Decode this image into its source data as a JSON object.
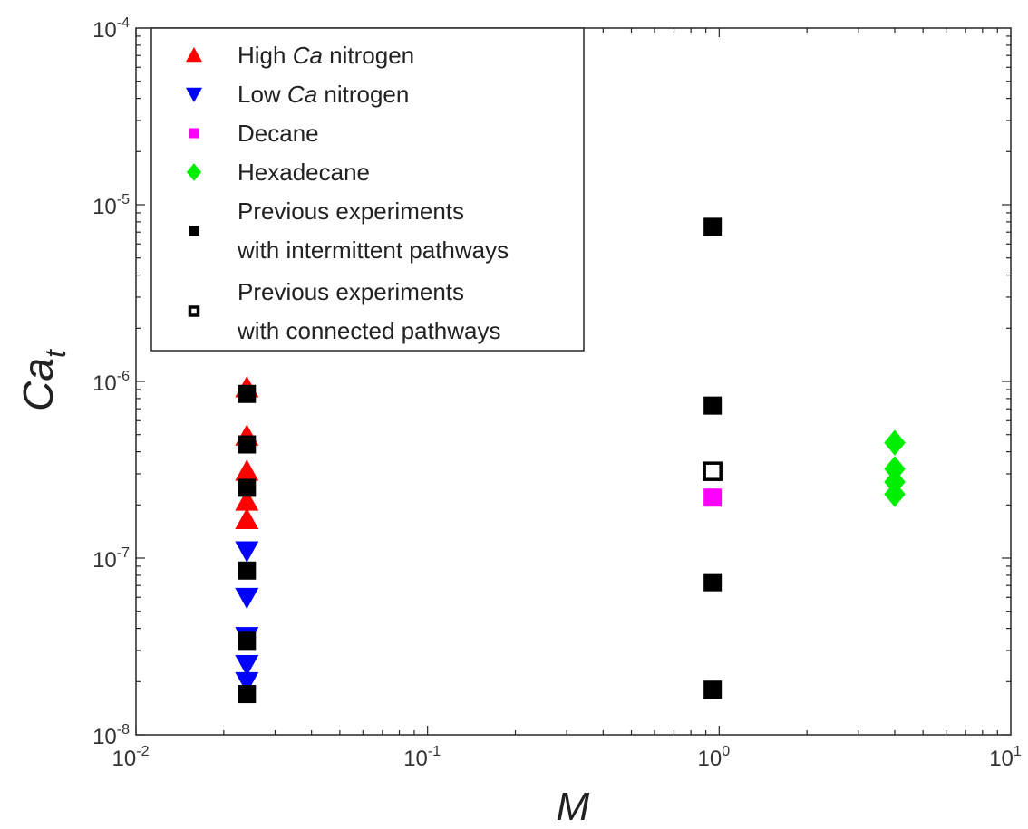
{
  "chart_data": {
    "type": "scatter",
    "x_scale": "log",
    "y_scale": "log",
    "xlim": [
      0.01,
      10
    ],
    "ylim": [
      1e-08,
      0.0001
    ],
    "grid": false,
    "legend_position": "top-left",
    "xlabel": "M",
    "ylabel": "Ca",
    "ylabel_subscript": "t",
    "x_ticks": [
      {
        "base": "10",
        "exp": "-2",
        "value": 0.01
      },
      {
        "base": "10",
        "exp": "-1",
        "value": 0.1
      },
      {
        "base": "10",
        "exp": "0",
        "value": 1
      },
      {
        "base": "10",
        "exp": "1",
        "value": 10
      }
    ],
    "y_ticks": [
      {
        "base": "10",
        "exp": "-8",
        "value": 1e-08
      },
      {
        "base": "10",
        "exp": "-7",
        "value": 1e-07
      },
      {
        "base": "10",
        "exp": "-6",
        "value": 1e-06
      },
      {
        "base": "10",
        "exp": "-5",
        "value": 1e-05
      },
      {
        "base": "10",
        "exp": "-4",
        "value": 0.0001
      }
    ],
    "series": [
      {
        "name": "High Ca nitrogen",
        "marker": "triangle-up",
        "color": "#ff0000",
        "points": [
          {
            "x": 0.024,
            "y": 9.2e-07
          },
          {
            "x": 0.024,
            "y": 4.9e-07
          },
          {
            "x": 0.024,
            "y": 3.1e-07
          },
          {
            "x": 0.024,
            "y": 2.1e-07
          },
          {
            "x": 0.024,
            "y": 1.65e-07
          }
        ]
      },
      {
        "name": "Low Ca nitrogen",
        "marker": "triangle-down",
        "color": "#0000ff",
        "points": [
          {
            "x": 0.024,
            "y": 1.1e-07
          },
          {
            "x": 0.024,
            "y": 6e-08
          },
          {
            "x": 0.024,
            "y": 3.6e-08
          },
          {
            "x": 0.024,
            "y": 2.5e-08
          },
          {
            "x": 0.024,
            "y": 2e-08
          }
        ]
      },
      {
        "name": "Decane",
        "marker": "square",
        "color": "#ff00ff",
        "points": [
          {
            "x": 0.95,
            "y": 2.2e-07
          }
        ]
      },
      {
        "name": "Hexadecane",
        "marker": "diamond",
        "color": "#00ee00",
        "points": [
          {
            "x": 4,
            "y": 4.5e-07
          },
          {
            "x": 4,
            "y": 3.2e-07
          },
          {
            "x": 4,
            "y": 2.7e-07
          },
          {
            "x": 4,
            "y": 2.3e-07
          }
        ]
      },
      {
        "name": "Previous experiments with intermittent pathways",
        "marker": "square",
        "color": "#000000",
        "points": [
          {
            "x": 0.024,
            "y": 8.5e-07
          },
          {
            "x": 0.024,
            "y": 4.4e-07
          },
          {
            "x": 0.024,
            "y": 2.5e-07
          },
          {
            "x": 0.024,
            "y": 8.5e-08
          },
          {
            "x": 0.024,
            "y": 3.4e-08
          },
          {
            "x": 0.024,
            "y": 1.7e-08
          },
          {
            "x": 0.95,
            "y": 7.5e-06
          },
          {
            "x": 0.95,
            "y": 7.3e-07
          },
          {
            "x": 0.95,
            "y": 7.3e-08
          },
          {
            "x": 0.95,
            "y": 1.8e-08
          }
        ]
      },
      {
        "name": "Previous experiments with connected pathways",
        "marker": "open-square",
        "color": "#000000",
        "points": [
          {
            "x": 0.95,
            "y": 3.1e-07
          }
        ]
      }
    ],
    "legend": [
      {
        "marker": "triangle-up",
        "color": "#ff0000",
        "lines": [
          {
            "pre": "High ",
            "ital": "Ca",
            "post": " nitrogen"
          }
        ]
      },
      {
        "marker": "triangle-down",
        "color": "#0000ff",
        "lines": [
          {
            "pre": "Low ",
            "ital": "Ca",
            "post": " nitrogen"
          }
        ]
      },
      {
        "marker": "square-small",
        "color": "#ff00ff",
        "lines": [
          {
            "pre": "Decane",
            "ital": "",
            "post": ""
          }
        ]
      },
      {
        "marker": "diamond",
        "color": "#00ee00",
        "lines": [
          {
            "pre": "Hexadecane",
            "ital": "",
            "post": ""
          }
        ]
      },
      {
        "marker": "square-small",
        "color": "#000000",
        "lines": [
          {
            "pre": "Previous experiments",
            "ital": "",
            "post": ""
          },
          {
            "pre": "with intermittent pathways",
            "ital": "",
            "post": ""
          }
        ]
      },
      {
        "marker": "open-square-small",
        "color": "#000000",
        "lines": [
          {
            "pre": "Previous experiments",
            "ital": "",
            "post": ""
          },
          {
            "pre": "with connected pathways",
            "ital": "",
            "post": ""
          }
        ]
      }
    ]
  }
}
